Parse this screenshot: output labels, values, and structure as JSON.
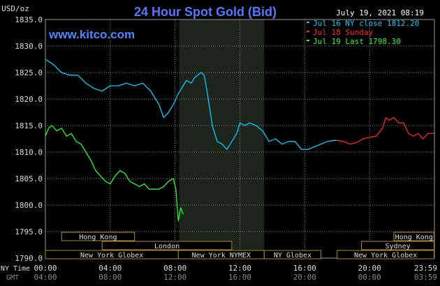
{
  "chart_data": {
    "type": "line",
    "title": "24 Hour Spot Gold (Bid)",
    "ylabel": "USD/oz",
    "website": "www.kitco.com",
    "timestamp": "July 19, 2021 08:19",
    "ylim": [
      1790,
      1835
    ],
    "yticks": [
      "1835.0",
      "1830.0",
      "1825.0",
      "1820.0",
      "1815.0",
      "1810.0",
      "1805.0",
      "1800.0",
      "1795.0",
      "1790.0"
    ],
    "ytick_values": [
      1835,
      1830,
      1825,
      1820,
      1815,
      1810,
      1805,
      1800,
      1795,
      1790
    ],
    "xlim": [
      0,
      24
    ],
    "x_label_ny": "NY Time",
    "x_label_gmt": "GMT",
    "xticks_ny": [
      "00:00",
      "04:00",
      "08:00",
      "12:00",
      "16:00",
      "20:00",
      "23:59"
    ],
    "xticks_gmt": [
      "04:00",
      "08:00",
      "12:00",
      "16:00",
      "20:00",
      "00:00",
      "03:59"
    ],
    "xtick_hours": [
      0,
      4,
      8,
      12,
      16,
      20,
      23.98
    ],
    "shaded_range_hours": [
      8.25,
      13.5
    ],
    "grid": true,
    "legend_position": "top-right",
    "series": [
      {
        "name": "Jul 16 NY close 1812.20",
        "color": "#00ccff",
        "x": [
          0,
          0.5,
          1.0,
          1.5,
          2.0,
          2.5,
          3.0,
          3.5,
          4.0,
          4.5,
          5.0,
          5.5,
          6.0,
          6.5,
          7.0,
          7.3,
          7.6,
          7.9,
          8.2,
          8.5,
          8.7,
          9.0,
          9.2,
          9.4,
          9.6,
          9.8,
          10.0,
          10.3,
          10.6,
          10.9,
          11.2,
          11.5,
          11.8,
          12.0,
          12.3,
          12.6,
          13.0,
          13.4,
          13.8,
          14.2,
          14.6,
          15.0,
          15.4,
          15.8,
          16.2,
          16.6,
          17.0,
          17.4,
          17.8,
          18.0
        ],
        "y": [
          1827.5,
          1826.5,
          1825.0,
          1824.5,
          1824.5,
          1823.0,
          1822.0,
          1821.5,
          1822.5,
          1822.5,
          1823.0,
          1822.5,
          1823.0,
          1821.5,
          1819.0,
          1816.5,
          1817.5,
          1819.0,
          1821.0,
          1822.5,
          1823.5,
          1823.0,
          1824.0,
          1824.5,
          1825.0,
          1824.5,
          1821.0,
          1815.0,
          1812.0,
          1811.5,
          1810.5,
          1812.0,
          1813.5,
          1815.5,
          1815.0,
          1815.5,
          1815.0,
          1814.0,
          1812.0,
          1812.5,
          1811.5,
          1812.0,
          1812.0,
          1810.5,
          1810.5,
          1811.0,
          1811.5,
          1812.0,
          1812.2,
          1812.2
        ]
      },
      {
        "name": "Jul 18 Sunday",
        "color": "#ff2222",
        "x": [
          18.0,
          18.4,
          18.8,
          19.2,
          19.6,
          20.0,
          20.4,
          20.8,
          21.0,
          21.2,
          21.5,
          21.8,
          22.1,
          22.4,
          22.7,
          23.0,
          23.3,
          23.6,
          23.98
        ],
        "y": [
          1812.2,
          1812.0,
          1811.5,
          1811.8,
          1812.5,
          1812.8,
          1813.0,
          1814.5,
          1816.5,
          1816.0,
          1816.5,
          1815.5,
          1815.5,
          1813.5,
          1813.0,
          1813.5,
          1812.5,
          1813.5,
          1813.5
        ]
      },
      {
        "name": "Jul 19 Last 1798.30",
        "color": "#22ff22",
        "x": [
          0,
          0.2,
          0.4,
          0.7,
          1.0,
          1.3,
          1.6,
          1.9,
          2.2,
          2.5,
          2.8,
          3.1,
          3.4,
          3.7,
          4.0,
          4.3,
          4.6,
          4.9,
          5.2,
          5.5,
          5.8,
          6.1,
          6.4,
          6.7,
          7.0,
          7.3,
          7.6,
          7.9,
          8.05,
          8.2,
          8.35,
          8.5
        ],
        "y": [
          1813.0,
          1814.5,
          1815.0,
          1814.0,
          1814.5,
          1813.0,
          1813.5,
          1812.0,
          1811.5,
          1810.0,
          1808.5,
          1806.5,
          1805.5,
          1804.5,
          1804.0,
          1805.5,
          1806.5,
          1806.0,
          1804.5,
          1804.0,
          1803.5,
          1804.0,
          1803.0,
          1803.0,
          1803.0,
          1803.5,
          1804.5,
          1805.0,
          1803.0,
          1797.0,
          1799.5,
          1798.3
        ]
      }
    ],
    "sessions": [
      {
        "label": "Hong Kong",
        "row": 0,
        "start": 1.0,
        "end": 5.5
      },
      {
        "label": "London",
        "row": 1,
        "start": 3.5,
        "end": 11.5
      },
      {
        "label": "New York Globex",
        "row": 2,
        "start": 0.0,
        "end": 8.2
      },
      {
        "label": "New York NYMEX",
        "row": 2,
        "start": 8.2,
        "end": 13.5
      },
      {
        "label": "NY Globex",
        "row": 2,
        "start": 13.5,
        "end": 17.0
      },
      {
        "label": "Hong Kong",
        "row": 0,
        "start": 21.5,
        "end": 23.98
      },
      {
        "label": "Sydney",
        "row": 1,
        "start": 19.5,
        "end": 23.98
      },
      {
        "label": "New York Globex",
        "row": 2,
        "start": 18.0,
        "end": 23.98
      }
    ]
  }
}
